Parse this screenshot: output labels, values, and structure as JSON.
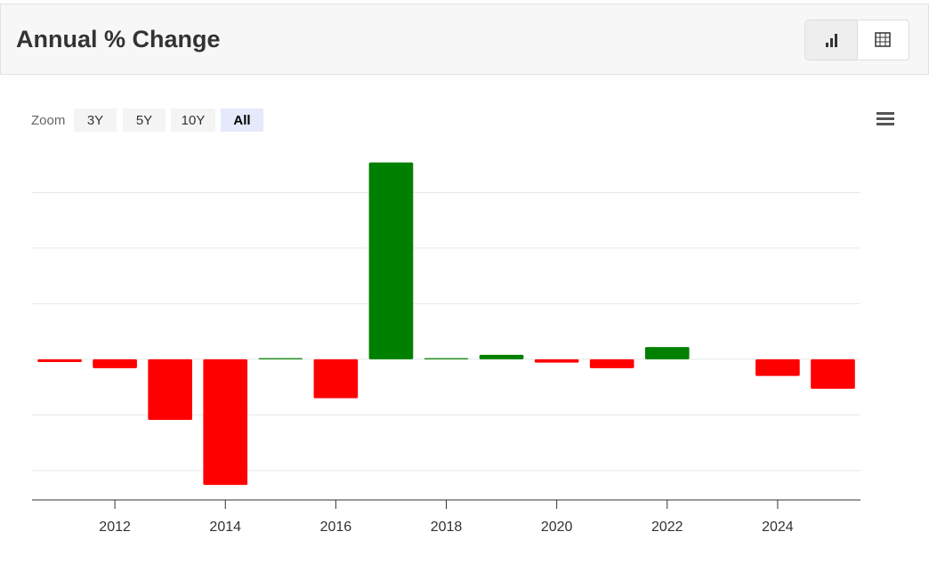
{
  "chart_data": {
    "type": "bar",
    "title": "Annual % Change",
    "x": [
      2011,
      2012,
      2013,
      2014,
      2015,
      2016,
      2017,
      2018,
      2019,
      2020,
      2021,
      2022,
      2023,
      2024,
      2025
    ],
    "values": [
      -0.5,
      -1.6,
      -10.9,
      -22.6,
      0.2,
      -7.0,
      35.4,
      0.2,
      0.8,
      -0.6,
      -1.6,
      2.2,
      null,
      -3.0,
      -5.3
    ],
    "xlim": [
      2010.5,
      2025.5
    ],
    "xticks": [
      2012,
      2014,
      2016,
      2018,
      2020,
      2022,
      2024
    ],
    "ylim": [
      -25.3,
      37.4
    ],
    "yticks": [
      -20,
      -10,
      0,
      10,
      20,
      30
    ],
    "grid": true,
    "positive_color": "#008000",
    "negative_color": "#ff0000"
  },
  "toolbar": {
    "zoom_label": "Zoom",
    "zoom_options": [
      "3Y",
      "5Y",
      "10Y",
      "All"
    ],
    "selected": 3
  }
}
